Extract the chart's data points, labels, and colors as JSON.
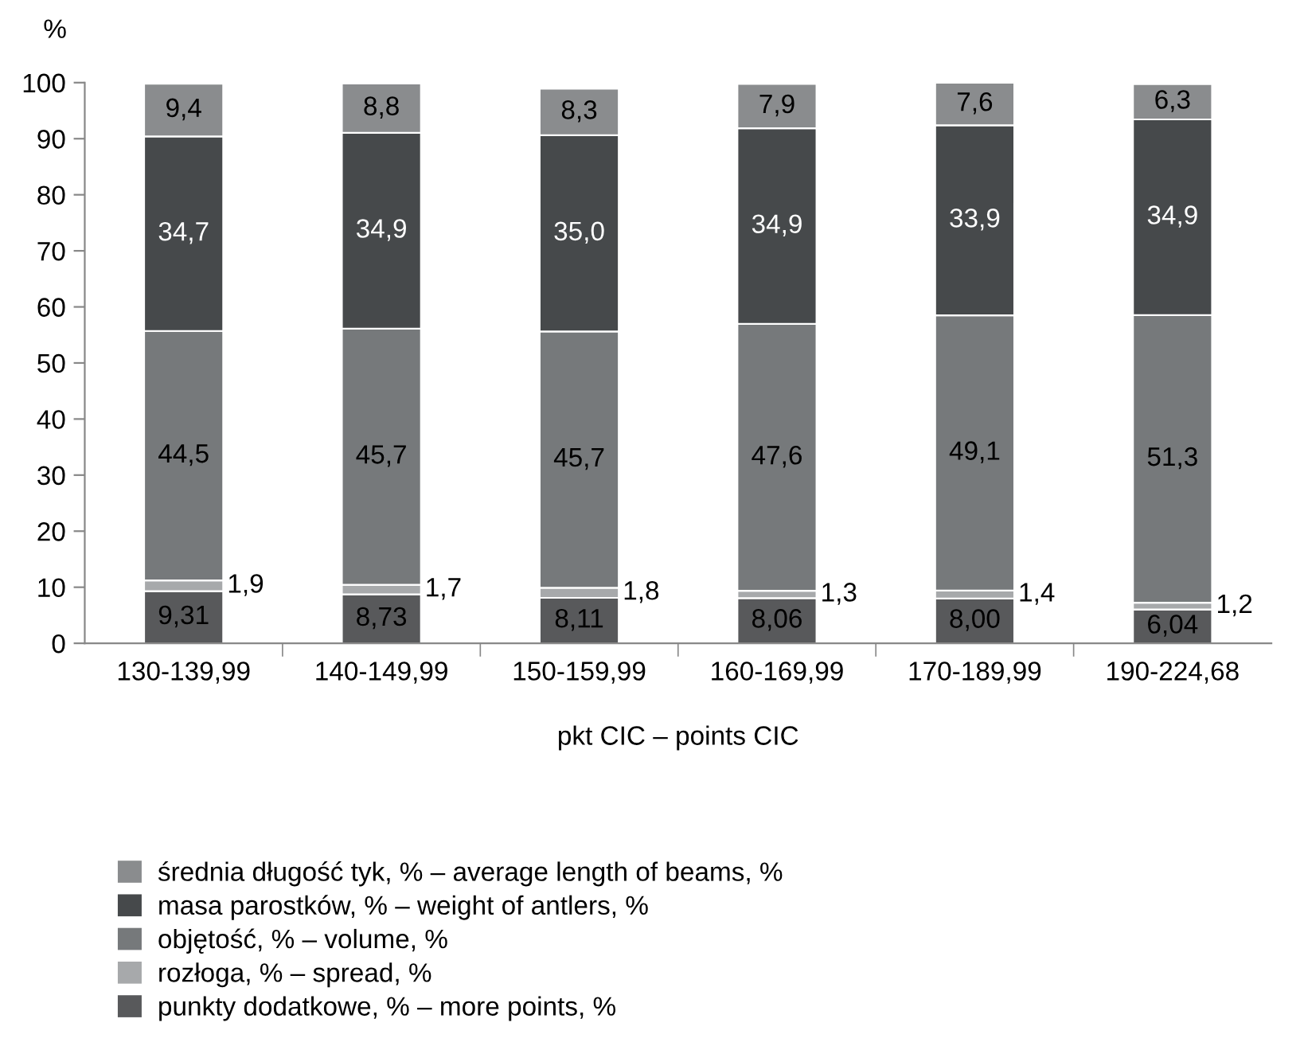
{
  "chart_data": {
    "type": "bar",
    "stacked": true,
    "ylabel": "%",
    "xlabel": "pkt CIC – points CIC",
    "categories": [
      "130-139,99",
      "140-149,99",
      "150-159,99",
      "160-169,99",
      "170-189,99",
      "190-224,68"
    ],
    "series": [
      {
        "name": "punkty dodatkowe, % – more points, %",
        "color": "#58595b",
        "values": [
          9.31,
          8.73,
          8.11,
          8.06,
          8.0,
          6.04
        ],
        "value_labels": [
          "9,31",
          "8,73",
          "8,11",
          "8,06",
          "8,00",
          "6,04"
        ]
      },
      {
        "name": "rozłoga, % – spread, %",
        "color": "#a7a9ab",
        "values": [
          1.9,
          1.7,
          1.8,
          1.3,
          1.4,
          1.2
        ],
        "value_labels": [
          "1,9",
          "1,7",
          "1,8",
          "1,3",
          "1,4",
          "1,2"
        ]
      },
      {
        "name": "objętość, % – volume, %",
        "color": "#76797b",
        "values": [
          44.5,
          45.7,
          45.7,
          47.6,
          49.1,
          51.3
        ],
        "value_labels": [
          "44,5",
          "45,7",
          "45,7",
          "47,6",
          "49,1",
          "51,3"
        ]
      },
      {
        "name": "masa parostków, % – weight of antlers, %",
        "color": "#46494b",
        "values": [
          34.7,
          34.9,
          35.0,
          34.9,
          33.9,
          34.9
        ],
        "value_labels": [
          "34,7",
          "34,9",
          "35,0",
          "34,9",
          "33,9",
          "34,9"
        ]
      },
      {
        "name": "średnia długość tyk, % – average length of beams, %",
        "color": "#8a8c8e",
        "values": [
          9.4,
          8.8,
          8.3,
          7.9,
          7.6,
          6.3
        ],
        "value_labels": [
          "9,4",
          "8,8",
          "8,3",
          "7,9",
          "7,6",
          "6,3"
        ]
      }
    ],
    "ylim": [
      0,
      100
    ],
    "yticks": [
      0,
      10,
      20,
      30,
      40,
      50,
      60,
      70,
      80,
      90,
      100
    ],
    "grid": false,
    "legend": "bottom"
  }
}
